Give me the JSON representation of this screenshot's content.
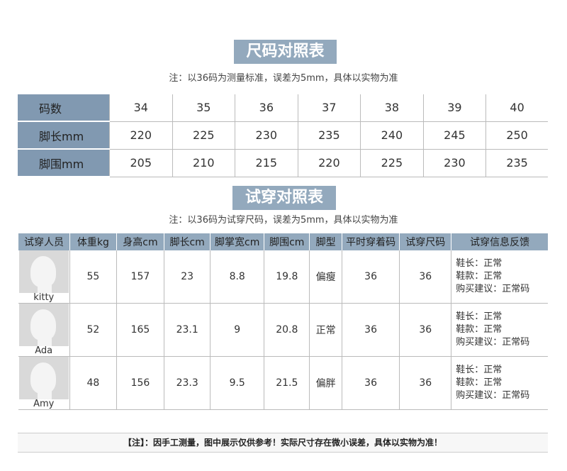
{
  "size_chart": {
    "title": "尺码对照表",
    "note": "注：以36码为测量标准，误差为5mm，具体以实物为准",
    "rows": [
      {
        "label": "码数",
        "values": [
          "34",
          "35",
          "36",
          "37",
          "38",
          "39",
          "40"
        ]
      },
      {
        "label": "脚长mm",
        "values": [
          "220",
          "225",
          "230",
          "235",
          "240",
          "245",
          "250"
        ]
      },
      {
        "label": "脚围mm",
        "values": [
          "205",
          "210",
          "215",
          "220",
          "225",
          "230",
          "235"
        ]
      }
    ]
  },
  "fitting_chart": {
    "title": "试穿对照表",
    "note": "注：以36码为试穿尺码，误差为5mm，具体以实物为准",
    "headers": [
      "试穿人员",
      "体重kg",
      "身高cm",
      "脚长cm",
      "脚掌宽cm",
      "脚围cm",
      "脚型",
      "平时穿着码",
      "试穿尺码",
      "试穿信息反馈"
    ],
    "rows": [
      {
        "name": "kitty",
        "values": [
          "55",
          "157",
          "23",
          "8.8",
          "19.8",
          "偏瘦",
          "36",
          "36"
        ],
        "feedback": [
          "鞋长：正常",
          "鞋款：正常",
          "购买建议：正常码"
        ]
      },
      {
        "name": "Ada",
        "values": [
          "52",
          "165",
          "23.1",
          "9",
          "20.8",
          "正常",
          "36",
          "36"
        ],
        "feedback": [
          "鞋长：正常",
          "鞋款：正常",
          "购买建议：正常码"
        ]
      },
      {
        "name": "Amy",
        "values": [
          "48",
          "156",
          "23.3",
          "9.5",
          "21.5",
          "偏胖",
          "36",
          "36"
        ],
        "feedback": [
          "鞋长：正常",
          "鞋款：正常",
          "购买建议：正常码"
        ]
      }
    ]
  },
  "footer": "【注】：因手工测量，图中展示仅供参考！实际尺寸存在微小误差，具体以实物为准！",
  "colors": {
    "accent": "#93a9bd",
    "label_bg": "#8199b1"
  }
}
